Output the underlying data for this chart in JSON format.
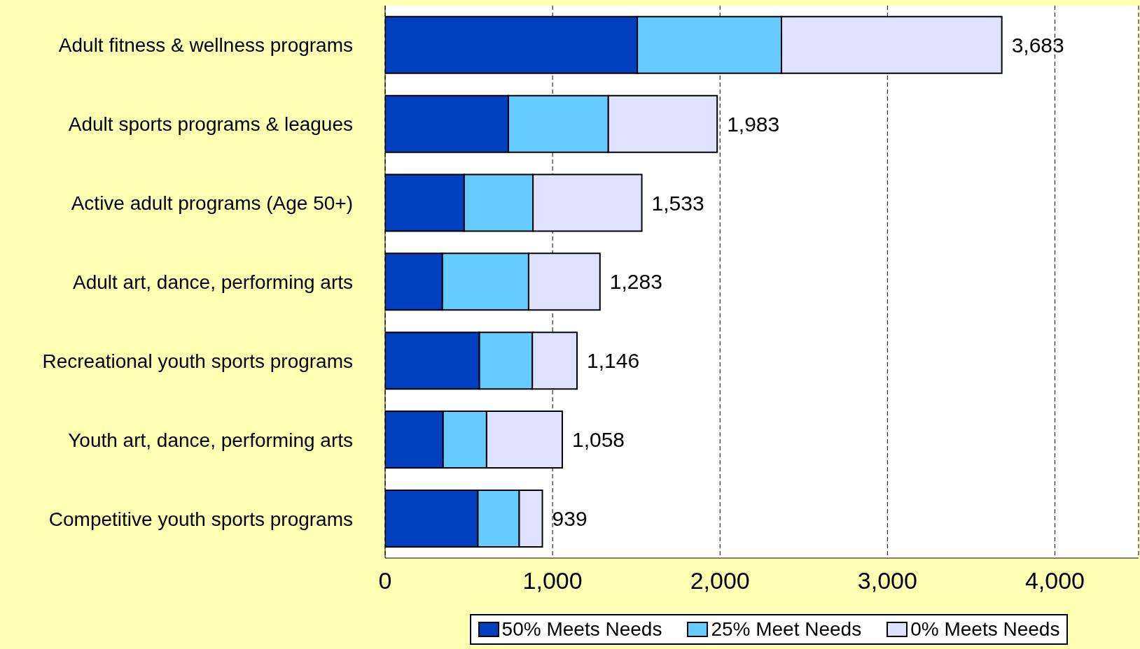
{
  "chart_data": {
    "type": "bar",
    "orientation": "horizontal",
    "stacked": true,
    "categories": [
      "Adult fitness & wellness programs",
      "Adult sports programs & leagues",
      "Active adult programs (Age 50+)",
      "Adult art, dance, performing arts",
      "Recreational youth sports programs",
      "Youth art, dance, performing arts",
      "Competitive youth sports programs"
    ],
    "series": [
      {
        "name": "50% Meets Needs",
        "color": "#003fbf",
        "values": [
          1506,
          736,
          472,
          342,
          563,
          346,
          554
        ]
      },
      {
        "name": "25% Meet Needs",
        "color": "#66ccff",
        "values": [
          861,
          597,
          411,
          515,
          316,
          260,
          247
        ]
      },
      {
        "name": "0% Meets Needs",
        "color": "#e0e0ff",
        "values": [
          1316,
          650,
          650,
          426,
          267,
          452,
          138
        ]
      }
    ],
    "totals": [
      "3,683",
      "1,983",
      "1,533",
      "1,283",
      "1,146",
      "1,058",
      "939"
    ],
    "xlim": [
      0,
      4500
    ],
    "xticks": [
      0,
      {
        "value": 1000,
        "label": "1,000"
      },
      {
        "value": 2000,
        "label": "2,000"
      },
      {
        "value": 3000,
        "label": "3,000"
      },
      {
        "value": 4000,
        "label": "4,000"
      }
    ],
    "grid": "x",
    "legend": "bottom"
  }
}
